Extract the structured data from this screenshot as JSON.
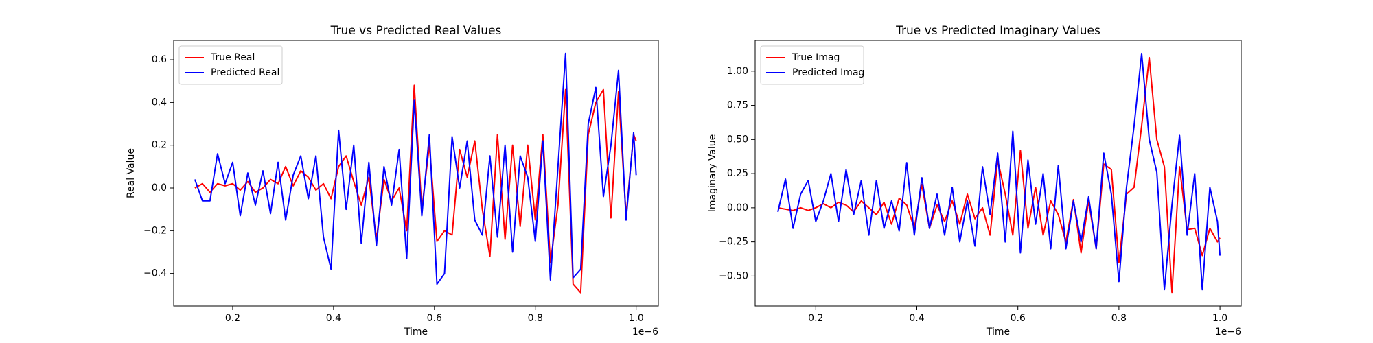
{
  "chart_data": [
    {
      "type": "line",
      "title": "True vs Predicted Real Values",
      "xlabel": "Time",
      "ylabel": "Real Value",
      "x_offset_label": "1e−6",
      "x": [
        0.125,
        0.14,
        0.155,
        0.17,
        0.185,
        0.2,
        0.215,
        0.23,
        0.245,
        0.26,
        0.275,
        0.29,
        0.305,
        0.32,
        0.335,
        0.35,
        0.365,
        0.38,
        0.395,
        0.41,
        0.425,
        0.44,
        0.455,
        0.47,
        0.485,
        0.5,
        0.515,
        0.53,
        0.545,
        0.56,
        0.575,
        0.59,
        0.605,
        0.62,
        0.635,
        0.65,
        0.665,
        0.68,
        0.695,
        0.71,
        0.725,
        0.74,
        0.755,
        0.77,
        0.785,
        0.8,
        0.815,
        0.83,
        0.845,
        0.86,
        0.875,
        0.89,
        0.905,
        0.92,
        0.935,
        0.95,
        0.965,
        0.98,
        0.995,
        1.0
      ],
      "series": [
        {
          "name": "True Real",
          "color": "#ff0000",
          "values": [
            0.0,
            0.02,
            -0.02,
            0.02,
            0.01,
            0.02,
            -0.01,
            0.03,
            -0.02,
            0.0,
            0.04,
            0.02,
            0.1,
            0.01,
            0.08,
            0.05,
            -0.01,
            0.02,
            -0.05,
            0.1,
            0.15,
            0.03,
            -0.08,
            0.05,
            -0.24,
            0.04,
            -0.06,
            0.0,
            -0.2,
            0.48,
            -0.1,
            0.2,
            -0.25,
            -0.2,
            -0.22,
            0.18,
            0.05,
            0.22,
            -0.1,
            -0.32,
            0.25,
            -0.24,
            0.2,
            -0.18,
            0.2,
            -0.15,
            0.25,
            -0.35,
            -0.08,
            0.46,
            -0.45,
            -0.49,
            0.25,
            0.4,
            0.46,
            -0.14,
            0.45,
            -0.13,
            0.25,
            0.22
          ]
        },
        {
          "name": "Predicted Real",
          "color": "#0000ff",
          "values": [
            0.04,
            -0.06,
            -0.06,
            0.16,
            0.02,
            0.12,
            -0.13,
            0.07,
            -0.08,
            0.08,
            -0.12,
            0.12,
            -0.15,
            0.06,
            0.15,
            -0.05,
            0.15,
            -0.23,
            -0.38,
            0.27,
            -0.1,
            0.2,
            -0.26,
            0.12,
            -0.27,
            0.1,
            -0.08,
            0.18,
            -0.33,
            0.41,
            -0.13,
            0.25,
            -0.45,
            -0.4,
            0.24,
            0.0,
            0.22,
            -0.15,
            -0.22,
            0.15,
            -0.23,
            0.2,
            -0.3,
            0.15,
            0.05,
            -0.25,
            0.22,
            -0.43,
            0.1,
            0.63,
            -0.42,
            -0.38,
            0.3,
            0.47,
            -0.04,
            0.2,
            0.55,
            -0.15,
            0.26,
            0.06
          ]
        }
      ],
      "xlim": [
        0.083,
        1.044
      ],
      "xticks": [
        0.2,
        0.4,
        0.6,
        0.8,
        {
          "value": 1.0,
          "label": "1.0"
        }
      ],
      "ylim": [
        -0.552,
        0.69
      ],
      "yticks": [
        {
          "value": -0.4,
          "label": "−0.4"
        },
        {
          "value": -0.2,
          "label": "−0.2"
        },
        {
          "value": 0,
          "label": "0.0"
        },
        0.2,
        0.4,
        0.6
      ],
      "legend": "upper left"
    },
    {
      "type": "line",
      "title": "True vs Predicted Imaginary Values",
      "xlabel": "Time",
      "ylabel": "Imaginary Value",
      "x_offset_label": "1e−6",
      "x": [
        0.125,
        0.14,
        0.155,
        0.17,
        0.185,
        0.2,
        0.215,
        0.23,
        0.245,
        0.26,
        0.275,
        0.29,
        0.305,
        0.32,
        0.335,
        0.35,
        0.365,
        0.38,
        0.395,
        0.41,
        0.425,
        0.44,
        0.455,
        0.47,
        0.485,
        0.5,
        0.515,
        0.53,
        0.545,
        0.56,
        0.575,
        0.59,
        0.605,
        0.62,
        0.635,
        0.65,
        0.665,
        0.68,
        0.695,
        0.71,
        0.725,
        0.74,
        0.755,
        0.77,
        0.785,
        0.8,
        0.815,
        0.83,
        0.845,
        0.86,
        0.875,
        0.89,
        0.905,
        0.92,
        0.935,
        0.95,
        0.965,
        0.98,
        0.995,
        1.0
      ],
      "series": [
        {
          "name": "True Imag",
          "color": "#ff0000",
          "values": [
            0.0,
            -0.01,
            -0.02,
            0.0,
            -0.02,
            0.0,
            0.03,
            0.0,
            0.04,
            0.02,
            -0.03,
            0.05,
            0.0,
            -0.05,
            0.04,
            -0.12,
            0.07,
            0.02,
            -0.15,
            0.17,
            -0.15,
            0.02,
            -0.1,
            0.05,
            -0.12,
            0.1,
            -0.08,
            0.0,
            -0.2,
            0.35,
            0.1,
            -0.2,
            0.42,
            -0.15,
            0.15,
            -0.2,
            0.05,
            -0.05,
            -0.25,
            0.06,
            -0.33,
            0.05,
            -0.3,
            0.32,
            0.28,
            -0.4,
            0.1,
            0.15,
            0.6,
            1.1,
            0.5,
            0.3,
            -0.62,
            0.3,
            -0.16,
            -0.15,
            -0.35,
            -0.15,
            -0.25,
            -0.22
          ]
        },
        {
          "name": "Predicted Imag",
          "color": "#0000ff",
          "values": [
            -0.03,
            0.21,
            -0.15,
            0.1,
            0.2,
            -0.1,
            0.05,
            0.25,
            -0.1,
            0.28,
            -0.05,
            0.2,
            -0.2,
            0.2,
            -0.15,
            0.05,
            -0.17,
            0.33,
            -0.2,
            0.22,
            -0.15,
            0.1,
            -0.2,
            0.15,
            -0.25,
            0.05,
            -0.28,
            0.3,
            -0.05,
            0.4,
            -0.25,
            0.56,
            -0.33,
            0.35,
            -0.12,
            0.25,
            -0.3,
            0.31,
            -0.3,
            0.05,
            -0.25,
            0.08,
            -0.3,
            0.4,
            0.1,
            -0.54,
            0.15,
            0.6,
            1.13,
            0.5,
            0.26,
            -0.6,
            0.02,
            0.53,
            -0.2,
            0.25,
            -0.6,
            0.15,
            -0.1,
            -0.35
          ]
        }
      ],
      "xlim": [
        0.08,
        1.042
      ],
      "xticks": [
        0.2,
        0.4,
        0.6,
        0.8,
        {
          "value": 1.0,
          "label": "1.0"
        }
      ],
      "ylim": [
        -0.719,
        1.225
      ],
      "yticks": [
        {
          "value": -0.5,
          "label": "−0.50"
        },
        {
          "value": -0.25,
          "label": "−0.25"
        },
        {
          "value": 0,
          "label": "0.00"
        },
        {
          "value": 0.25,
          "label": "0.25"
        },
        {
          "value": 0.5,
          "label": "0.50"
        },
        {
          "value": 0.75,
          "label": "0.75"
        },
        {
          "value": 1.0,
          "label": "1.00"
        }
      ],
      "legend": "upper left"
    }
  ]
}
